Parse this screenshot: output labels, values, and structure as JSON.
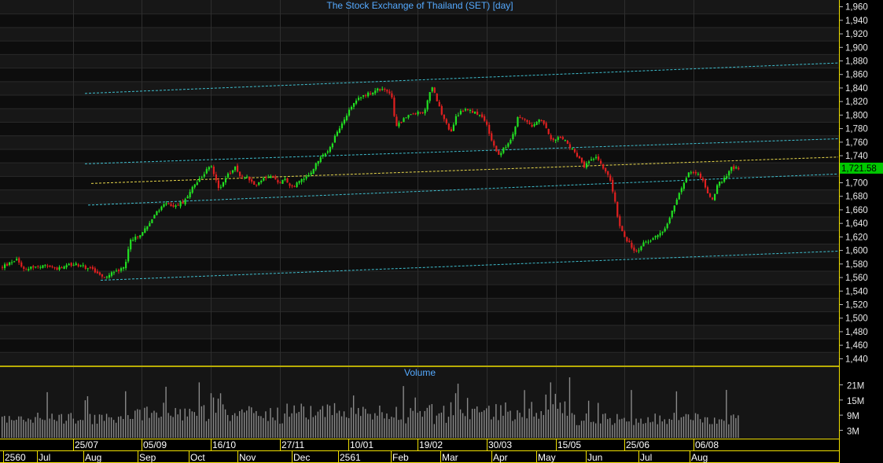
{
  "chart_data": {
    "type": "candlestick",
    "title": "The Stock Exchange of Thailand (SET) [day]",
    "price_axis": {
      "ylim": [
        1430,
        1970
      ],
      "ticks": [
        1440,
        1460,
        1480,
        1500,
        1520,
        1540,
        1560,
        1580,
        1600,
        1620,
        1640,
        1660,
        1680,
        1700,
        1720,
        1740,
        1760,
        1780,
        1800,
        1820,
        1840,
        1860,
        1880,
        1900,
        1920,
        1940,
        1960
      ],
      "tick_labels": [
        "1,440",
        "1,460",
        "1,480",
        "1,500",
        "1,520",
        "1,540",
        "1,560",
        "1,580",
        "1,600",
        "1,620",
        "1,640",
        "1,660",
        "1,680",
        "1,700",
        "1,720",
        "1,740",
        "1,760",
        "1,780",
        "1,800",
        "1,820",
        "1,840",
        "1,860",
        "1,880",
        "1,900",
        "1,920",
        "1,940",
        "1,960"
      ]
    },
    "last_price": "1,721.58",
    "price_path": [
      [
        0,
        1575
      ],
      [
        10,
        1580
      ],
      [
        20,
        1588
      ],
      [
        30,
        1572
      ],
      [
        40,
        1576
      ],
      [
        50,
        1575
      ],
      [
        60,
        1578
      ],
      [
        72,
        1572
      ],
      [
        86,
        1578
      ],
      [
        95,
        1580
      ],
      [
        105,
        1576
      ],
      [
        118,
        1572
      ],
      [
        128,
        1560
      ],
      [
        138,
        1565
      ],
      [
        150,
        1570
      ],
      [
        158,
        1580
      ],
      [
        165,
        1615
      ],
      [
        178,
        1625
      ],
      [
        188,
        1640
      ],
      [
        198,
        1655
      ],
      [
        210,
        1670
      ],
      [
        222,
        1665
      ],
      [
        232,
        1672
      ],
      [
        242,
        1690
      ],
      [
        252,
        1705
      ],
      [
        262,
        1718
      ],
      [
        268,
        1725
      ],
      [
        278,
        1688
      ],
      [
        288,
        1712
      ],
      [
        298,
        1722
      ],
      [
        305,
        1706
      ],
      [
        312,
        1712
      ],
      [
        322,
        1695
      ],
      [
        332,
        1705
      ],
      [
        342,
        1712
      ],
      [
        352,
        1700
      ],
      [
        362,
        1705
      ],
      [
        372,
        1692
      ],
      [
        382,
        1705
      ],
      [
        392,
        1712
      ],
      [
        402,
        1730
      ],
      [
        412,
        1742
      ],
      [
        420,
        1755
      ],
      [
        430,
        1780
      ],
      [
        440,
        1800
      ],
      [
        450,
        1820
      ],
      [
        460,
        1830
      ],
      [
        470,
        1832
      ],
      [
        480,
        1838
      ],
      [
        490,
        1835
      ],
      [
        497,
        1828
      ],
      [
        502,
        1780
      ],
      [
        510,
        1792
      ],
      [
        520,
        1800
      ],
      [
        530,
        1805
      ],
      [
        538,
        1800
      ],
      [
        548,
        1845
      ],
      [
        556,
        1815
      ],
      [
        564,
        1795
      ],
      [
        572,
        1775
      ],
      [
        580,
        1800
      ],
      [
        590,
        1810
      ],
      [
        600,
        1805
      ],
      [
        610,
        1800
      ],
      [
        618,
        1785
      ],
      [
        625,
        1758
      ],
      [
        632,
        1740
      ],
      [
        640,
        1750
      ],
      [
        650,
        1765
      ],
      [
        658,
        1800
      ],
      [
        668,
        1790
      ],
      [
        676,
        1785
      ],
      [
        684,
        1795
      ],
      [
        694,
        1780
      ],
      [
        702,
        1760
      ],
      [
        710,
        1770
      ],
      [
        718,
        1762
      ],
      [
        726,
        1750
      ],
      [
        734,
        1738
      ],
      [
        742,
        1725
      ],
      [
        750,
        1732
      ],
      [
        758,
        1740
      ],
      [
        766,
        1720
      ],
      [
        774,
        1710
      ],
      [
        780,
        1680
      ],
      [
        786,
        1640
      ],
      [
        794,
        1620
      ],
      [
        802,
        1605
      ],
      [
        810,
        1595
      ],
      [
        818,
        1612
      ],
      [
        828,
        1615
      ],
      [
        838,
        1625
      ],
      [
        848,
        1640
      ],
      [
        856,
        1665
      ],
      [
        864,
        1690
      ],
      [
        870,
        1705
      ],
      [
        878,
        1718
      ],
      [
        886,
        1715
      ],
      [
        894,
        1700
      ],
      [
        904,
        1672
      ],
      [
        912,
        1698
      ],
      [
        920,
        1705
      ],
      [
        928,
        1722
      ],
      [
        936,
        1722
      ],
      [
        939,
        1722
      ]
    ],
    "trend_lines": [
      {
        "from": [
          108,
          1832
        ],
        "to": [
          1066,
          1877
        ],
        "color": "#3fbfcf",
        "style": "dashed"
      },
      {
        "from": [
          108,
          1728
        ],
        "to": [
          1066,
          1765
        ],
        "color": "#3fbfcf",
        "style": "dashed"
      },
      {
        "from": [
          116,
          1699
        ],
        "to": [
          1066,
          1738
        ],
        "color": "#e8d84c",
        "style": "dashed"
      },
      {
        "from": [
          112,
          1667
        ],
        "to": [
          1066,
          1713
        ],
        "color": "#3fbfcf",
        "style": "dashed"
      },
      {
        "from": [
          128,
          1556
        ],
        "to": [
          1066,
          1599
        ],
        "color": "#3fbfcf",
        "style": "dashed"
      }
    ],
    "volume": {
      "title": "Volume",
      "ylim": [
        0,
        24
      ],
      "unit": "M",
      "ticks": [
        3,
        9,
        15,
        21
      ],
      "tick_labels": [
        "3M",
        "9M",
        "15M",
        "21M"
      ]
    },
    "date_row_1": [
      "25/07",
      "05/09",
      "16/10",
      "27/11",
      "10/01",
      "19/02",
      "30/03",
      "15/05",
      "25/06",
      "06/08"
    ],
    "date_row_2": [
      "2560",
      "Jul",
      "Aug",
      "Sep",
      "Oct",
      "Nov",
      "Dec",
      "2561",
      "Feb",
      "Mar",
      "Apr",
      "May",
      "Jun",
      "Jul",
      "Aug"
    ],
    "colors": {
      "background": "#000000",
      "panel": "#111111",
      "grid": "#3a3a3a",
      "up": "#22e022",
      "down": "#e02020",
      "panel_border": "#f0e000",
      "last_price_bg": "#00c800",
      "title": "#55aaff",
      "volume_bar": "#8a8a8a"
    }
  }
}
